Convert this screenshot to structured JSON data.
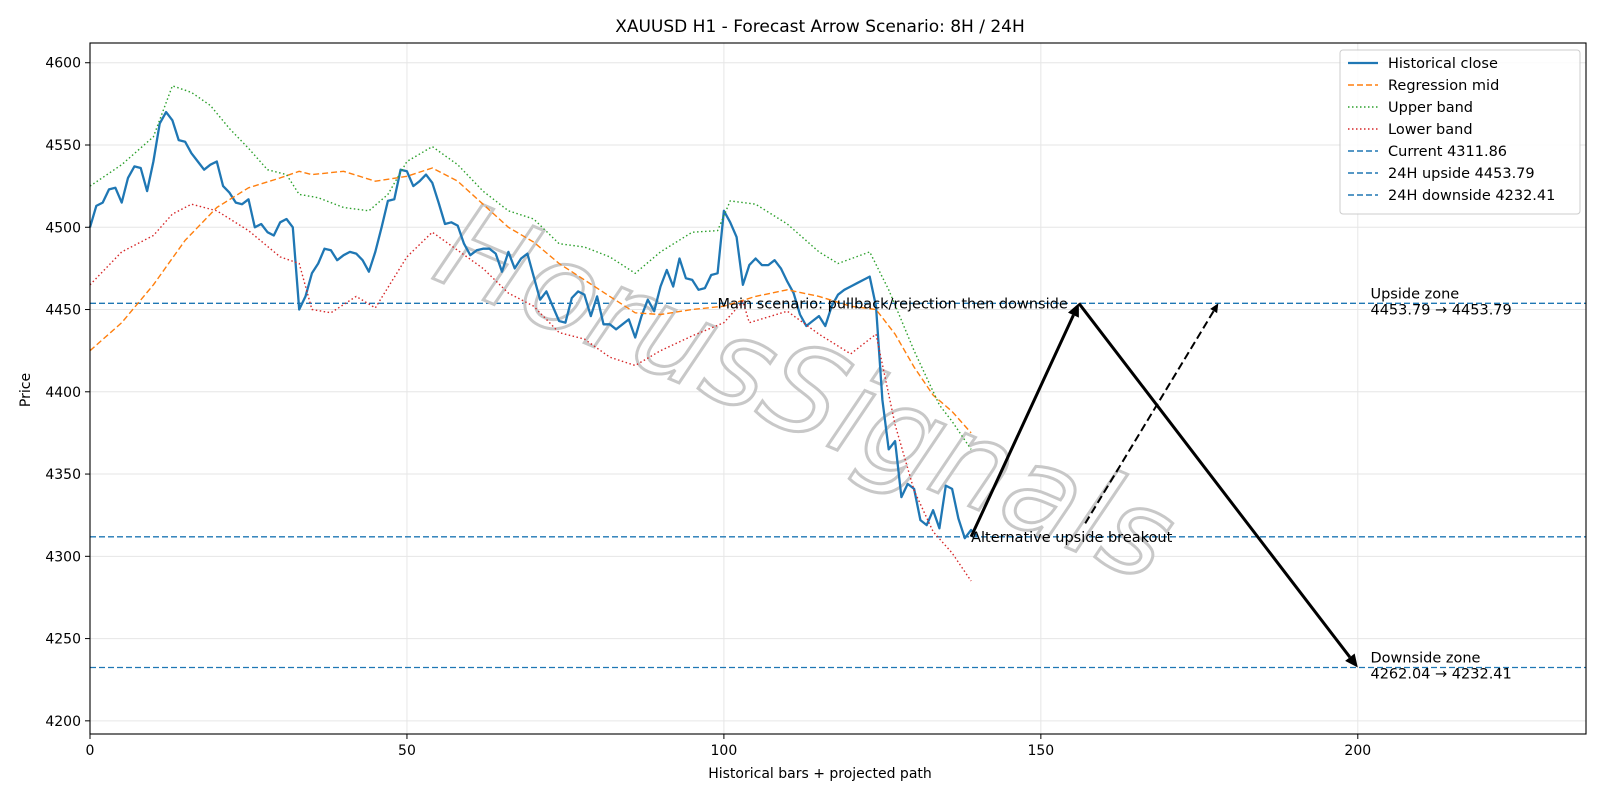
{
  "chart_data": {
    "type": "line",
    "title": "XAUUSD H1 - Forecast Arrow Scenario: 8H / 24H",
    "xlabel": "Historical bars + projected path",
    "ylabel": "Price",
    "xlim": [
      0,
      236
    ],
    "ylim": [
      4192,
      4612
    ],
    "x_ticks": [
      0,
      50,
      100,
      150,
      200
    ],
    "y_ticks": [
      4200,
      4250,
      4300,
      4350,
      4400,
      4450,
      4500,
      4550,
      4600
    ],
    "grid": true,
    "legend_position": "top-right",
    "series": [
      {
        "name": "Historical close",
        "style": "solid",
        "color": "#1f77b4",
        "points": [
          [
            0,
            4500
          ],
          [
            1,
            4513
          ],
          [
            2,
            4515
          ],
          [
            3,
            4523
          ],
          [
            4,
            4524
          ],
          [
            5,
            4515
          ],
          [
            6,
            4530
          ],
          [
            7,
            4537
          ],
          [
            8,
            4536
          ],
          [
            9,
            4522
          ],
          [
            10,
            4540
          ],
          [
            11,
            4563
          ],
          [
            12,
            4570
          ],
          [
            13,
            4565
          ],
          [
            14,
            4553
          ],
          [
            15,
            4552
          ],
          [
            16,
            4545
          ],
          [
            17,
            4540
          ],
          [
            18,
            4535
          ],
          [
            19,
            4538
          ],
          [
            20,
            4540
          ],
          [
            21,
            4525
          ],
          [
            22,
            4521
          ],
          [
            23,
            4515
          ],
          [
            24,
            4514
          ],
          [
            25,
            4517
          ],
          [
            26,
            4500
          ],
          [
            27,
            4502
          ],
          [
            28,
            4497
          ],
          [
            29,
            4495
          ],
          [
            30,
            4503
          ],
          [
            31,
            4505
          ],
          [
            32,
            4500
          ],
          [
            33,
            4450
          ],
          [
            34,
            4458
          ],
          [
            35,
            4472
          ],
          [
            36,
            4478
          ],
          [
            37,
            4487
          ],
          [
            38,
            4486
          ],
          [
            39,
            4480
          ],
          [
            40,
            4483
          ],
          [
            41,
            4485
          ],
          [
            42,
            4484
          ],
          [
            43,
            4480
          ],
          [
            44,
            4473
          ],
          [
            45,
            4485
          ],
          [
            46,
            4500
          ],
          [
            47,
            4516
          ],
          [
            48,
            4517
          ],
          [
            49,
            4535
          ],
          [
            50,
            4534
          ],
          [
            51,
            4525
          ],
          [
            52,
            4528
          ],
          [
            53,
            4532
          ],
          [
            54,
            4527
          ],
          [
            55,
            4515
          ],
          [
            56,
            4502
          ],
          [
            57,
            4503
          ],
          [
            58,
            4501
          ],
          [
            59,
            4490
          ],
          [
            60,
            4483
          ],
          [
            61,
            4486
          ],
          [
            62,
            4487
          ],
          [
            63,
            4487
          ],
          [
            64,
            4484
          ],
          [
            65,
            4473
          ],
          [
            66,
            4485
          ],
          [
            67,
            4475
          ],
          [
            68,
            4481
          ],
          [
            69,
            4484
          ],
          [
            70,
            4470
          ],
          [
            71,
            4456
          ],
          [
            72,
            4461
          ],
          [
            73,
            4452
          ],
          [
            74,
            4443
          ],
          [
            75,
            4442
          ],
          [
            76,
            4457
          ],
          [
            77,
            4461
          ],
          [
            78,
            4459
          ],
          [
            79,
            4446
          ],
          [
            80,
            4458
          ],
          [
            81,
            4441
          ],
          [
            82,
            4441
          ],
          [
            83,
            4438
          ],
          [
            84,
            4441
          ],
          [
            85,
            4444
          ],
          [
            86,
            4433
          ],
          [
            87,
            4446
          ],
          [
            88,
            4456
          ],
          [
            89,
            4449
          ],
          [
            90,
            4464
          ],
          [
            91,
            4474
          ],
          [
            92,
            4464
          ],
          [
            93,
            4481
          ],
          [
            94,
            4469
          ],
          [
            95,
            4468
          ],
          [
            96,
            4462
          ],
          [
            97,
            4463
          ],
          [
            98,
            4471
          ],
          [
            99,
            4472
          ],
          [
            100,
            4510
          ],
          [
            101,
            4503
          ],
          [
            102,
            4494
          ],
          [
            103,
            4465
          ],
          [
            104,
            4477
          ],
          [
            105,
            4481
          ],
          [
            106,
            4477
          ],
          [
            107,
            4477
          ],
          [
            108,
            4480
          ],
          [
            109,
            4475
          ],
          [
            110,
            4467
          ],
          [
            111,
            4460
          ],
          [
            112,
            4447
          ],
          [
            113,
            4440
          ],
          [
            114,
            4443
          ],
          [
            115,
            4446
          ],
          [
            116,
            4440
          ],
          [
            117,
            4452
          ],
          [
            118,
            4459
          ],
          [
            119,
            4462
          ],
          [
            120,
            4464
          ],
          [
            121,
            4466
          ],
          [
            122,
            4468
          ],
          [
            123,
            4470
          ],
          [
            124,
            4452
          ],
          [
            125,
            4395
          ],
          [
            126,
            4365
          ],
          [
            127,
            4370
          ],
          [
            128,
            4336
          ],
          [
            129,
            4344
          ],
          [
            130,
            4341
          ],
          [
            131,
            4322
          ],
          [
            132,
            4319
          ],
          [
            133,
            4328
          ],
          [
            134,
            4317
          ],
          [
            135,
            4343
          ],
          [
            136,
            4341
          ],
          [
            137,
            4323
          ],
          [
            138,
            4311
          ],
          [
            139,
            4316
          ],
          [
            140,
            4312
          ]
        ]
      },
      {
        "name": "Regression mid",
        "style": "dashed",
        "color": "#ff7f0e",
        "points": [
          [
            0,
            4425
          ],
          [
            5,
            4442
          ],
          [
            10,
            4465
          ],
          [
            15,
            4492
          ],
          [
            20,
            4512
          ],
          [
            25,
            4524
          ],
          [
            30,
            4530
          ],
          [
            33,
            4534
          ],
          [
            35,
            4532
          ],
          [
            40,
            4534
          ],
          [
            45,
            4528
          ],
          [
            50,
            4531
          ],
          [
            54,
            4536
          ],
          [
            58,
            4528
          ],
          [
            62,
            4514
          ],
          [
            66,
            4500
          ],
          [
            70,
            4491
          ],
          [
            74,
            4478
          ],
          [
            78,
            4468
          ],
          [
            82,
            4458
          ],
          [
            86,
            4448
          ],
          [
            90,
            4447
          ],
          [
            95,
            4450
          ],
          [
            100,
            4452
          ],
          [
            105,
            4458
          ],
          [
            110,
            4462
          ],
          [
            115,
            4458
          ],
          [
            120,
            4452
          ],
          [
            124,
            4450
          ],
          [
            127,
            4435
          ],
          [
            130,
            4415
          ],
          [
            133,
            4398
          ],
          [
            136,
            4388
          ],
          [
            139,
            4375
          ]
        ]
      },
      {
        "name": "Upper band",
        "style": "dotted",
        "color": "#2ca02c",
        "points": [
          [
            0,
            4525
          ],
          [
            5,
            4538
          ],
          [
            10,
            4555
          ],
          [
            13,
            4586
          ],
          [
            16,
            4582
          ],
          [
            19,
            4574
          ],
          [
            22,
            4560
          ],
          [
            25,
            4548
          ],
          [
            28,
            4535
          ],
          [
            31,
            4532
          ],
          [
            33,
            4520
          ],
          [
            36,
            4518
          ],
          [
            40,
            4512
          ],
          [
            44,
            4510
          ],
          [
            47,
            4520
          ],
          [
            50,
            4540
          ],
          [
            54,
            4549
          ],
          [
            58,
            4538
          ],
          [
            62,
            4522
          ],
          [
            66,
            4510
          ],
          [
            70,
            4505
          ],
          [
            74,
            4490
          ],
          [
            78,
            4488
          ],
          [
            82,
            4482
          ],
          [
            86,
            4472
          ],
          [
            90,
            4485
          ],
          [
            95,
            4497
          ],
          [
            99,
            4498
          ],
          [
            101,
            4516
          ],
          [
            105,
            4514
          ],
          [
            110,
            4502
          ],
          [
            115,
            4485
          ],
          [
            118,
            4478
          ],
          [
            123,
            4485
          ],
          [
            126,
            4462
          ],
          [
            130,
            4425
          ],
          [
            134,
            4392
          ],
          [
            136,
            4382
          ],
          [
            139,
            4365
          ]
        ]
      },
      {
        "name": "Lower band",
        "style": "dotted",
        "color": "#d62728",
        "points": [
          [
            0,
            4465
          ],
          [
            5,
            4485
          ],
          [
            10,
            4495
          ],
          [
            13,
            4508
          ],
          [
            16,
            4514
          ],
          [
            20,
            4510
          ],
          [
            25,
            4498
          ],
          [
            30,
            4482
          ],
          [
            33,
            4478
          ],
          [
            35,
            4450
          ],
          [
            38,
            4448
          ],
          [
            42,
            4458
          ],
          [
            45,
            4451
          ],
          [
            50,
            4482
          ],
          [
            54,
            4497
          ],
          [
            58,
            4486
          ],
          [
            62,
            4475
          ],
          [
            66,
            4460
          ],
          [
            70,
            4452
          ],
          [
            74,
            4436
          ],
          [
            78,
            4432
          ],
          [
            82,
            4421
          ],
          [
            86,
            4416
          ],
          [
            90,
            4425
          ],
          [
            95,
            4434
          ],
          [
            100,
            4442
          ],
          [
            103,
            4455
          ],
          [
            104,
            4442
          ],
          [
            110,
            4449
          ],
          [
            115,
            4435
          ],
          [
            120,
            4423
          ],
          [
            124,
            4435
          ],
          [
            127,
            4380
          ],
          [
            130,
            4340
          ],
          [
            133,
            4315
          ],
          [
            136,
            4302
          ],
          [
            139,
            4285
          ]
        ]
      }
    ],
    "hlines": [
      {
        "name": "Current 4311.86",
        "y": 4311.86,
        "color": "#1f77b4"
      },
      {
        "name": "24H upside 4453.79",
        "y": 4453.79,
        "color": "#1f77b4"
      },
      {
        "name": "24H downside 4232.41",
        "y": 4232.41,
        "color": "#1f77b4"
      }
    ],
    "forecast_arrows": [
      {
        "role": "main-up",
        "style": "solid",
        "from": [
          139,
          4311.86
        ],
        "to": [
          156,
          4453.79
        ]
      },
      {
        "role": "main-down",
        "style": "solid",
        "from": [
          156,
          4453.79
        ],
        "to": [
          200,
          4232.41
        ]
      },
      {
        "role": "alternative",
        "style": "dashed",
        "from": [
          157,
          4320
        ],
        "to": [
          178,
          4453.79
        ]
      }
    ],
    "annotations": [
      {
        "role": "main-scenario",
        "text": "Main scenario: pullback/rejection then downside",
        "x": 99,
        "y": 4453.79
      },
      {
        "role": "alternative-scenario",
        "text": "Alternative upside breakout",
        "x": 139,
        "y": 4311.86
      },
      {
        "role": "upside-zone",
        "lines": [
          "Upside zone",
          "4453.79 → 4453.79"
        ],
        "x": 202,
        "y": 4453.79
      },
      {
        "role": "downside-zone",
        "lines": [
          "Downside zone",
          "4262.04 → 4232.41"
        ],
        "x": 202,
        "y": 4232.41
      }
    ],
    "watermark": "HorusSignals"
  }
}
